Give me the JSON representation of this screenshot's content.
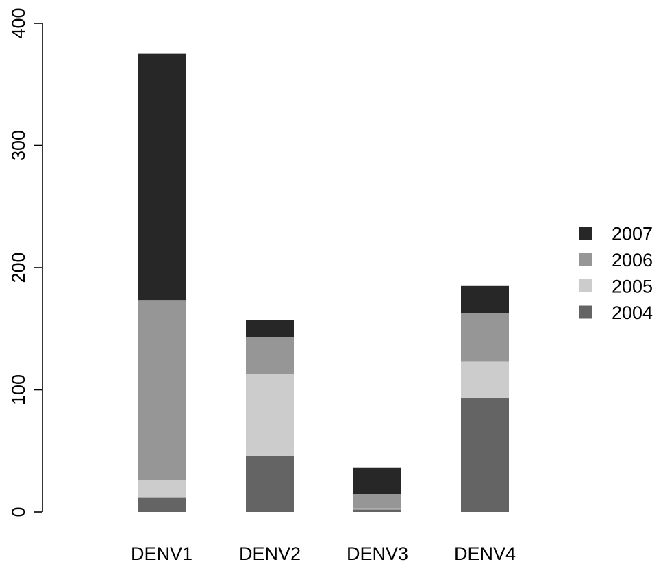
{
  "chart_data": {
    "type": "bar",
    "stacked": true,
    "categories": [
      "DENV1",
      "DENV2",
      "DENV3",
      "DENV4"
    ],
    "series": [
      {
        "name": "2004",
        "values": [
          12,
          46,
          2,
          93
        ],
        "color": "#646464"
      },
      {
        "name": "2005",
        "values": [
          14,
          67,
          1,
          30
        ],
        "color": "#cccccc"
      },
      {
        "name": "2006",
        "values": [
          147,
          30,
          12,
          40
        ],
        "color": "#969696"
      },
      {
        "name": "2007",
        "values": [
          202,
          14,
          21,
          22
        ],
        "color": "#272727"
      }
    ],
    "title": "",
    "xlabel": "",
    "ylabel": "",
    "ylim": [
      0,
      400
    ],
    "yticks": [
      "0",
      "100",
      "200",
      "300",
      "400"
    ],
    "grid": false,
    "legend": {
      "position": "right",
      "entries": [
        "2007",
        "2006",
        "2005",
        "2004"
      ]
    }
  }
}
